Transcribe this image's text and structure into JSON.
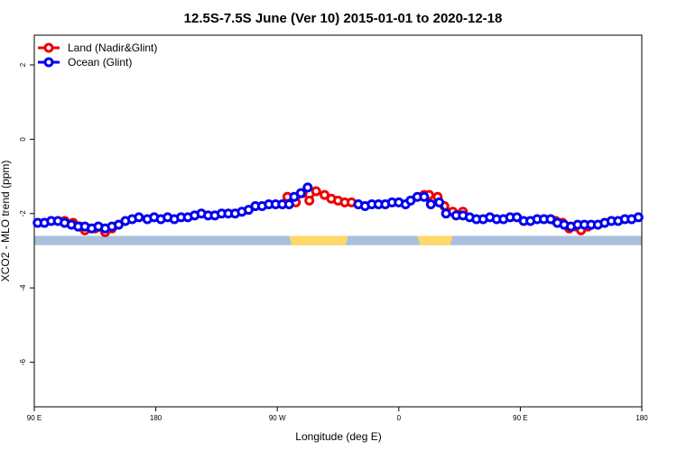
{
  "chart_data": {
    "type": "line",
    "title": "12.5S-7.5S June (Ver 10)   2015-01-01 to 2020-12-18",
    "xlabel": "Longitude (deg E)",
    "ylabel": "XCO2 - MLO trend (ppm)",
    "xlim": [
      90,
      450
    ],
    "ylim": [
      -7.2,
      2.8
    ],
    "x_ticks": [
      {
        "value": 90,
        "label": "90 E"
      },
      {
        "value": 162,
        "label": "180"
      },
      {
        "value": 234,
        "label": "90 W"
      },
      {
        "value": 306,
        "label": "0"
      },
      {
        "value": 378,
        "label": "90 E"
      },
      {
        "value": 450,
        "label": "180"
      }
    ],
    "y_ticks": [
      {
        "value": 2,
        "label": "2"
      },
      {
        "value": 0,
        "label": "0"
      },
      {
        "value": -2,
        "label": "-2"
      },
      {
        "value": -4,
        "label": "-4"
      },
      {
        "value": -6,
        "label": "-6"
      }
    ],
    "legend_position": "top-left",
    "series": [
      {
        "name": "Land (Nadir&Glint)",
        "color": "#ee0000",
        "points": [
          [
            108,
            -2.2
          ],
          [
            113,
            -2.25
          ],
          [
            117,
            -2.35
          ],
          [
            120,
            -2.45
          ],
          [
            126,
            -2.4
          ],
          [
            132,
            -2.5
          ],
          [
            136,
            -2.4
          ],
          [
            240,
            -1.55
          ],
          [
            245,
            -1.7
          ],
          [
            249,
            -1.45
          ],
          [
            253,
            -1.65
          ],
          [
            257,
            -1.4
          ],
          [
            262,
            -1.5
          ],
          [
            266,
            -1.6
          ],
          [
            270,
            -1.65
          ],
          [
            274,
            -1.7
          ],
          [
            278,
            -1.7
          ],
          [
            321,
            -1.5
          ],
          [
            324,
            -1.5
          ],
          [
            329,
            -1.55
          ],
          [
            333,
            -1.8
          ],
          [
            338,
            -1.95
          ],
          [
            343,
            -2.0
          ],
          [
            344,
            -1.95
          ],
          [
            399,
            -2.2
          ],
          [
            403,
            -2.25
          ],
          [
            407,
            -2.4
          ],
          [
            411,
            -2.35
          ],
          [
            414,
            -2.45
          ],
          [
            418,
            -2.35
          ]
        ]
      },
      {
        "name": "Ocean (Glint)",
        "color": "#0000ee",
        "points": [
          [
            92,
            -2.25
          ],
          [
            96,
            -2.25
          ],
          [
            100,
            -2.2
          ],
          [
            104,
            -2.2
          ],
          [
            108,
            -2.25
          ],
          [
            112,
            -2.3
          ],
          [
            116,
            -2.35
          ],
          [
            120,
            -2.35
          ],
          [
            124,
            -2.4
          ],
          [
            128,
            -2.35
          ],
          [
            132,
            -2.4
          ],
          [
            136,
            -2.35
          ],
          [
            140,
            -2.3
          ],
          [
            144,
            -2.2
          ],
          [
            148,
            -2.15
          ],
          [
            152,
            -2.1
          ],
          [
            157,
            -2.15
          ],
          [
            161,
            -2.1
          ],
          [
            165,
            -2.15
          ],
          [
            169,
            -2.1
          ],
          [
            173,
            -2.15
          ],
          [
            177,
            -2.1
          ],
          [
            181,
            -2.1
          ],
          [
            185,
            -2.05
          ],
          [
            189,
            -2.0
          ],
          [
            193,
            -2.05
          ],
          [
            197,
            -2.05
          ],
          [
            201,
            -2.0
          ],
          [
            205,
            -2.0
          ],
          [
            209,
            -2.0
          ],
          [
            213,
            -1.95
          ],
          [
            217,
            -1.9
          ],
          [
            221,
            -1.8
          ],
          [
            225,
            -1.8
          ],
          [
            229,
            -1.75
          ],
          [
            233,
            -1.75
          ],
          [
            237,
            -1.75
          ],
          [
            241,
            -1.75
          ],
          [
            244,
            -1.55
          ],
          [
            248,
            -1.45
          ],
          [
            252,
            -1.3
          ],
          [
            282,
            -1.75
          ],
          [
            286,
            -1.8
          ],
          [
            290,
            -1.75
          ],
          [
            294,
            -1.75
          ],
          [
            298,
            -1.75
          ],
          [
            302,
            -1.7
          ],
          [
            306,
            -1.7
          ],
          [
            310,
            -1.75
          ],
          [
            313,
            -1.65
          ],
          [
            317,
            -1.55
          ],
          [
            321,
            -1.55
          ],
          [
            325,
            -1.75
          ],
          [
            330,
            -1.7
          ],
          [
            334,
            -2.0
          ],
          [
            340,
            -2.05
          ],
          [
            344,
            -2.05
          ],
          [
            348,
            -2.1
          ],
          [
            352,
            -2.15
          ],
          [
            356,
            -2.15
          ],
          [
            360,
            -2.1
          ],
          [
            364,
            -2.15
          ],
          [
            368,
            -2.15
          ],
          [
            372,
            -2.1
          ],
          [
            376,
            -2.1
          ],
          [
            380,
            -2.2
          ],
          [
            384,
            -2.2
          ],
          [
            388,
            -2.15
          ],
          [
            392,
            -2.15
          ],
          [
            396,
            -2.15
          ],
          [
            400,
            -2.25
          ],
          [
            404,
            -2.3
          ],
          [
            408,
            -2.35
          ],
          [
            412,
            -2.3
          ],
          [
            416,
            -2.3
          ],
          [
            420,
            -2.3
          ],
          [
            424,
            -2.3
          ],
          [
            428,
            -2.25
          ],
          [
            432,
            -2.2
          ],
          [
            436,
            -2.2
          ],
          [
            440,
            -2.15
          ],
          [
            444,
            -2.15
          ],
          [
            448,
            -2.1
          ]
        ]
      }
    ],
    "land_bar": {
      "y_range": [
        -2.6,
        -2.85
      ],
      "ocean_color": "#a9c0dd",
      "land_color": "#ffd966",
      "land_segments": [
        [
          241,
          276
        ],
        [
          317,
          338
        ]
      ]
    }
  }
}
